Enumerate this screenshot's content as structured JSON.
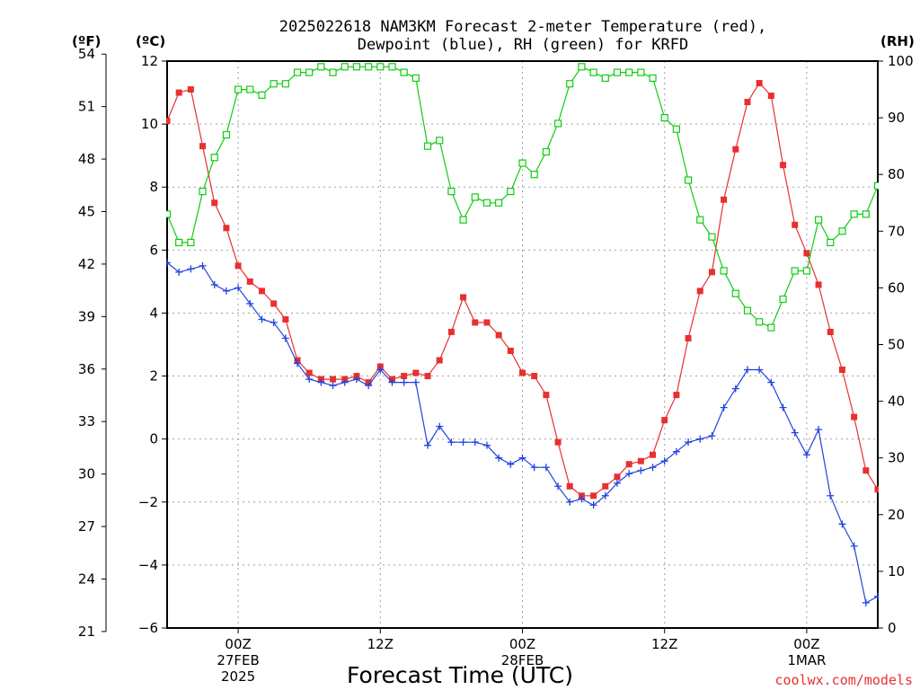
{
  "chart_data": {
    "type": "line",
    "title_lines": [
      "2025022618 NAM3KM Forecast 2-meter Temperature (red),",
      "Dewpoint (blue), RH (green) for KRFD"
    ],
    "xlabel": "Forecast Time (UTC)",
    "credit": "coolwx.com/models",
    "units": {
      "left_outer": "(ºF)",
      "left_inner": "(ºC)",
      "right": "(RH)"
    },
    "x_hours_range": [
      0,
      60
    ],
    "x_ticks": [
      {
        "hour": 6,
        "lines": [
          "00Z",
          "27FEB",
          "2025"
        ]
      },
      {
        "hour": 18,
        "lines": [
          "12Z"
        ]
      },
      {
        "hour": 30,
        "lines": [
          "00Z",
          "28FEB"
        ]
      },
      {
        "hour": 42,
        "lines": [
          "12Z"
        ]
      },
      {
        "hour": 54,
        "lines": [
          "00Z",
          "1MAR"
        ]
      }
    ],
    "y_celsius": {
      "min": -6,
      "max": 12,
      "ticks": [
        "12",
        "10",
        "8",
        "6",
        "4",
        "2",
        "0",
        "−2",
        "−4",
        "−6"
      ],
      "tick_values": [
        12,
        10,
        8,
        6,
        4,
        2,
        0,
        -2,
        -4,
        -6
      ]
    },
    "y_fahrenheit": {
      "ticks": [
        "54",
        "51",
        "48",
        "45",
        "42",
        "39",
        "36",
        "33",
        "30",
        "27",
        "24",
        "21"
      ],
      "tick_values": [
        54,
        51,
        48,
        45,
        42,
        39,
        36,
        33,
        30,
        27,
        24,
        21
      ]
    },
    "y_rh": {
      "min": 0,
      "max": 100,
      "ticks": [
        "100",
        "90",
        "80",
        "70",
        "60",
        "50",
        "40",
        "30",
        "20",
        "10",
        "0"
      ],
      "tick_values": [
        100,
        90,
        80,
        70,
        60,
        50,
        40,
        30,
        20,
        10,
        0
      ]
    },
    "grid": true,
    "series": [
      {
        "name": "Temperature",
        "unit": "C",
        "color": "#e83030",
        "marker": "filled-square",
        "values": [
          [
            0,
            10.1
          ],
          [
            1,
            11.0
          ],
          [
            2,
            11.1
          ],
          [
            3,
            9.3
          ],
          [
            4,
            7.5
          ],
          [
            5,
            6.7
          ],
          [
            6,
            5.5
          ],
          [
            7,
            5.0
          ],
          [
            8,
            4.7
          ],
          [
            9,
            4.3
          ],
          [
            10,
            3.8
          ],
          [
            11,
            2.5
          ],
          [
            12,
            2.1
          ],
          [
            13,
            1.9
          ],
          [
            14,
            1.9
          ],
          [
            15,
            1.9
          ],
          [
            16,
            2.0
          ],
          [
            17,
            1.8
          ],
          [
            18,
            2.3
          ],
          [
            19,
            1.9
          ],
          [
            20,
            2.0
          ],
          [
            21,
            2.1
          ],
          [
            22,
            2.0
          ],
          [
            23,
            2.5
          ],
          [
            24,
            3.4
          ],
          [
            25,
            4.5
          ],
          [
            26,
            3.7
          ],
          [
            27,
            3.7
          ],
          [
            28,
            3.3
          ],
          [
            29,
            2.8
          ],
          [
            30,
            2.1
          ],
          [
            31,
            2.0
          ],
          [
            32,
            1.4
          ],
          [
            33,
            -0.1
          ],
          [
            34,
            -1.5
          ],
          [
            35,
            -1.8
          ],
          [
            36,
            -1.8
          ],
          [
            37,
            -1.5
          ],
          [
            38,
            -1.2
          ],
          [
            39,
            -0.8
          ],
          [
            40,
            -0.7
          ],
          [
            41,
            -0.5
          ],
          [
            42,
            0.6
          ],
          [
            43,
            1.4
          ],
          [
            44,
            3.2
          ],
          [
            45,
            4.7
          ],
          [
            46,
            5.3
          ],
          [
            47,
            7.6
          ],
          [
            48,
            9.2
          ],
          [
            49,
            10.7
          ],
          [
            50,
            11.3
          ],
          [
            51,
            10.9
          ],
          [
            52,
            8.7
          ],
          [
            53,
            6.8
          ],
          [
            54,
            5.9
          ],
          [
            55,
            4.9
          ],
          [
            56,
            3.4
          ],
          [
            57,
            2.2
          ],
          [
            58,
            0.7
          ],
          [
            59,
            -1.0
          ],
          [
            60,
            -1.6
          ]
        ]
      },
      {
        "name": "Dewpoint",
        "unit": "C",
        "color": "#2244dd",
        "marker": "plus",
        "values": [
          [
            0,
            5.6
          ],
          [
            1,
            5.3
          ],
          [
            2,
            5.4
          ],
          [
            3,
            5.5
          ],
          [
            4,
            4.9
          ],
          [
            5,
            4.7
          ],
          [
            6,
            4.8
          ],
          [
            7,
            4.3
          ],
          [
            8,
            3.8
          ],
          [
            9,
            3.7
          ],
          [
            10,
            3.2
          ],
          [
            11,
            2.4
          ],
          [
            12,
            1.9
          ],
          [
            13,
            1.8
          ],
          [
            14,
            1.7
          ],
          [
            15,
            1.8
          ],
          [
            16,
            1.9
          ],
          [
            17,
            1.7
          ],
          [
            18,
            2.2
          ],
          [
            19,
            1.8
          ],
          [
            20,
            1.8
          ],
          [
            21,
            1.8
          ],
          [
            22,
            -0.2
          ],
          [
            23,
            0.4
          ],
          [
            24,
            -0.1
          ],
          [
            25,
            -0.1
          ],
          [
            26,
            -0.1
          ],
          [
            27,
            -0.2
          ],
          [
            28,
            -0.6
          ],
          [
            29,
            -0.8
          ],
          [
            30,
            -0.6
          ],
          [
            31,
            -0.9
          ],
          [
            32,
            -0.9
          ],
          [
            33,
            -1.5
          ],
          [
            34,
            -2.0
          ],
          [
            35,
            -1.9
          ],
          [
            36,
            -2.1
          ],
          [
            37,
            -1.8
          ],
          [
            38,
            -1.4
          ],
          [
            39,
            -1.1
          ],
          [
            40,
            -1.0
          ],
          [
            41,
            -0.9
          ],
          [
            42,
            -0.7
          ],
          [
            43,
            -0.4
          ],
          [
            44,
            -0.1
          ],
          [
            45,
            0.0
          ],
          [
            46,
            0.1
          ],
          [
            47,
            1.0
          ],
          [
            48,
            1.6
          ],
          [
            49,
            2.2
          ],
          [
            50,
            2.2
          ],
          [
            51,
            1.8
          ],
          [
            52,
            1.0
          ],
          [
            53,
            0.2
          ],
          [
            54,
            -0.5
          ],
          [
            55,
            0.3
          ],
          [
            56,
            -1.8
          ],
          [
            57,
            -2.7
          ],
          [
            58,
            -3.4
          ],
          [
            59,
            -5.2
          ],
          [
            60,
            -5.0
          ]
        ]
      },
      {
        "name": "RH",
        "unit": "%",
        "color": "#11cc11",
        "marker": "open-square",
        "values": [
          [
            0,
            73
          ],
          [
            1,
            68
          ],
          [
            2,
            68
          ],
          [
            3,
            77
          ],
          [
            4,
            83
          ],
          [
            5,
            87
          ],
          [
            6,
            95
          ],
          [
            7,
            95
          ],
          [
            8,
            94
          ],
          [
            9,
            96
          ],
          [
            10,
            96
          ],
          [
            11,
            98
          ],
          [
            12,
            98
          ],
          [
            13,
            99
          ],
          [
            14,
            98
          ],
          [
            15,
            99
          ],
          [
            16,
            99
          ],
          [
            17,
            99
          ],
          [
            18,
            99
          ],
          [
            19,
            99
          ],
          [
            20,
            98
          ],
          [
            21,
            97
          ],
          [
            22,
            85
          ],
          [
            23,
            86
          ],
          [
            24,
            77
          ],
          [
            25,
            72
          ],
          [
            26,
            76
          ],
          [
            27,
            75
          ],
          [
            28,
            75
          ],
          [
            29,
            77
          ],
          [
            30,
            82
          ],
          [
            31,
            80
          ],
          [
            32,
            84
          ],
          [
            33,
            89
          ],
          [
            34,
            96
          ],
          [
            35,
            99
          ],
          [
            36,
            98
          ],
          [
            37,
            97
          ],
          [
            38,
            98
          ],
          [
            39,
            98
          ],
          [
            40,
            98
          ],
          [
            41,
            97
          ],
          [
            42,
            90
          ],
          [
            43,
            88
          ],
          [
            44,
            79
          ],
          [
            45,
            72
          ],
          [
            46,
            69
          ],
          [
            47,
            63
          ],
          [
            48,
            59
          ],
          [
            49,
            56
          ],
          [
            50,
            54
          ],
          [
            51,
            53
          ],
          [
            52,
            58
          ],
          [
            53,
            63
          ],
          [
            54,
            63
          ],
          [
            55,
            72
          ],
          [
            56,
            68
          ],
          [
            57,
            70
          ],
          [
            58,
            73
          ],
          [
            59,
            73
          ],
          [
            60,
            78
          ]
        ]
      }
    ]
  }
}
